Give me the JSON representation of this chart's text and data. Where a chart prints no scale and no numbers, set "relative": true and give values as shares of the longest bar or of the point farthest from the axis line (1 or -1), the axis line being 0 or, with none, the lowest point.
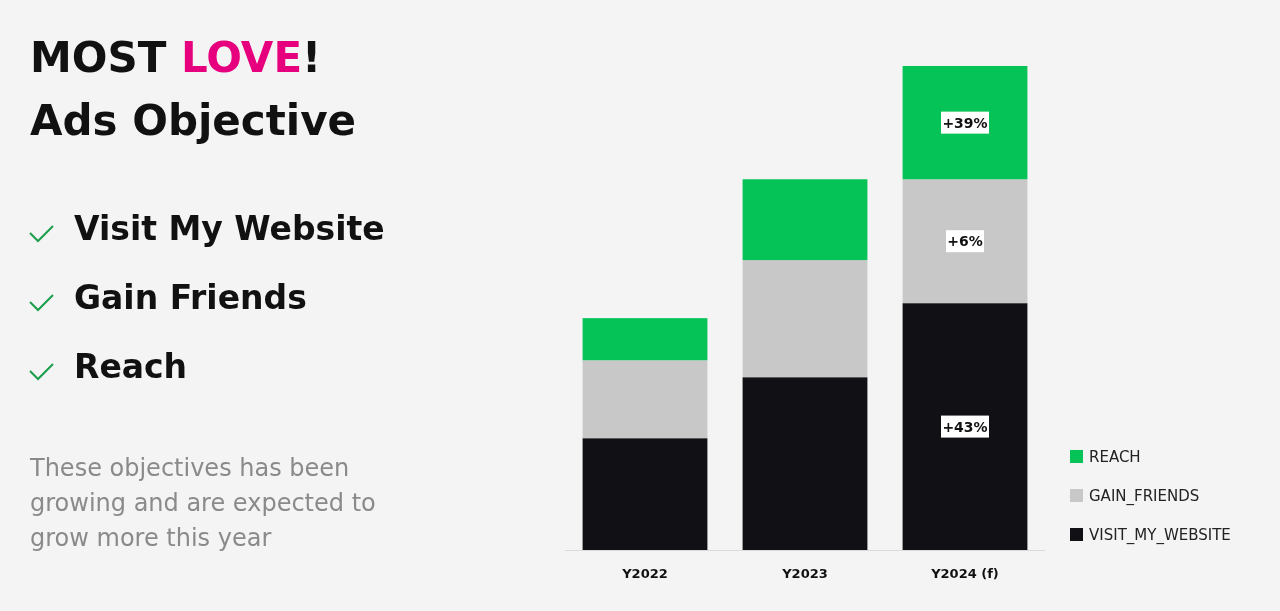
{
  "chart_data": {
    "type": "bar",
    "title": "MOST LOVE!",
    "subtitle": "Ads Objective",
    "stacked": true,
    "relative": true,
    "categories": [
      "Y2022",
      "Y2023",
      "Y2024 (f)"
    ],
    "legend": "bottom right",
    "series": [
      {
        "name": "VISIT_MY_WEBSITE",
        "color": "#111015",
        "values": [
          0.231,
          0.357,
          0.51
        ]
      },
      {
        "name": "GAIN_FRIENDS",
        "color": "#c8c8c8",
        "values": [
          0.161,
          0.242,
          0.256
        ]
      },
      {
        "name": "REACH",
        "color": "#05c357",
        "values": [
          0.087,
          0.167,
          0.234
        ]
      }
    ],
    "annotations": [
      "Visit My Website",
      "Gain Friends",
      "Reach",
      "These objectives has been growing and are expected to grow more this year",
      "+43%",
      "+6%",
      "+39%"
    ]
  }
}
